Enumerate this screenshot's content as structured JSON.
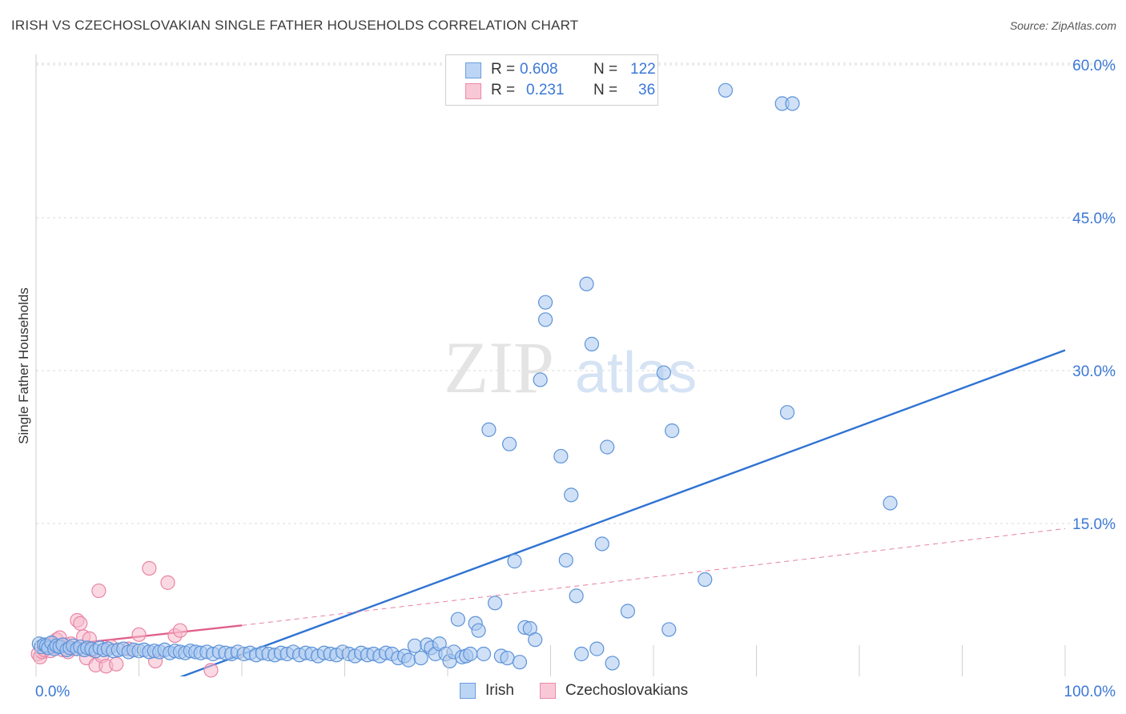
{
  "title": "IRISH VS CZECHOSLOVAKIAN SINGLE FATHER HOUSEHOLDS CORRELATION CHART",
  "source": "Source: ZipAtlas.com",
  "watermark": {
    "zip": "ZIP",
    "atlas": "atlas"
  },
  "legend": {
    "rows": [
      {
        "r_label": "R =",
        "r_value": "0.608",
        "n_label": "N =",
        "n_value": "122"
      },
      {
        "r_label": "R =",
        "r_value": "0.231",
        "n_label": "N =",
        "n_value": "36"
      }
    ]
  },
  "bottom_legend": [
    "Irish",
    "Czechoslovakians"
  ],
  "colors": {
    "irish_fill": "#a9c8f0",
    "irish_stroke": "#5d93d8",
    "irish_line": "#2f73d2",
    "czech_fill": "#f7b9cc",
    "czech_stroke": "#e985a6",
    "czech_line": "#e0608c",
    "tick_label": "#3b78d6",
    "grid": "#d9d9d9"
  },
  "chart_data": {
    "type": "scatter",
    "title": "IRISH VS CZECHOSLOVAKIAN SINGLE FATHER HOUSEHOLDS CORRELATION CHART",
    "ylabel": "Single Father Households",
    "xlabel": "",
    "xlim": [
      0,
      100
    ],
    "ylim": [
      0,
      62.5
    ],
    "x_tick_labels": [
      "0.0%",
      "100.0%"
    ],
    "y_ticks": [
      15,
      30,
      45,
      60
    ],
    "y_tick_labels": [
      "15.0%",
      "30.0%",
      "45.0%",
      "60.0%"
    ],
    "grid": "horizontal dashed",
    "legend_position": "top-center",
    "series": [
      {
        "name": "Irish",
        "R": 0.608,
        "N": 122,
        "trendline": {
          "x": [
            11.8,
            100
          ],
          "y": [
            -0.9,
            32.0
          ],
          "style": "solid"
        },
        "points": [
          [
            0.3,
            3.2
          ],
          [
            0.5,
            2.9
          ],
          [
            0.8,
            3.1
          ],
          [
            1.0,
            3.0
          ],
          [
            1.2,
            2.8
          ],
          [
            1.5,
            3.3
          ],
          [
            1.8,
            2.7
          ],
          [
            2.0,
            3.0
          ],
          [
            2.3,
            2.9
          ],
          [
            2.6,
            3.1
          ],
          [
            3.0,
            2.6
          ],
          [
            3.3,
            2.8
          ],
          [
            3.6,
            3.0
          ],
          [
            4.0,
            2.7
          ],
          [
            4.3,
            2.9
          ],
          [
            4.7,
            2.6
          ],
          [
            5.0,
            2.8
          ],
          [
            5.4,
            2.7
          ],
          [
            5.8,
            2.5
          ],
          [
            6.2,
            2.8
          ],
          [
            6.6,
            2.6
          ],
          [
            7.0,
            2.7
          ],
          [
            7.5,
            2.5
          ],
          [
            8.0,
            2.6
          ],
          [
            8.5,
            2.7
          ],
          [
            9.0,
            2.4
          ],
          [
            9.5,
            2.6
          ],
          [
            10.0,
            2.5
          ],
          [
            10.5,
            2.6
          ],
          [
            11.0,
            2.4
          ],
          [
            11.5,
            2.5
          ],
          [
            12.0,
            2.4
          ],
          [
            12.5,
            2.6
          ],
          [
            13.0,
            2.3
          ],
          [
            13.5,
            2.5
          ],
          [
            14.0,
            2.4
          ],
          [
            14.5,
            2.3
          ],
          [
            15.0,
            2.5
          ],
          [
            15.5,
            2.4
          ],
          [
            16.0,
            2.3
          ],
          [
            16.6,
            2.4
          ],
          [
            17.2,
            2.2
          ],
          [
            17.8,
            2.4
          ],
          [
            18.4,
            2.3
          ],
          [
            19.0,
            2.2
          ],
          [
            19.6,
            2.4
          ],
          [
            20.2,
            2.2
          ],
          [
            20.8,
            2.3
          ],
          [
            21.4,
            2.1
          ],
          [
            22.0,
            2.3
          ],
          [
            22.6,
            2.2
          ],
          [
            23.2,
            2.1
          ],
          [
            23.8,
            2.3
          ],
          [
            24.4,
            2.2
          ],
          [
            25.0,
            2.4
          ],
          [
            25.6,
            2.1
          ],
          [
            26.2,
            2.3
          ],
          [
            26.8,
            2.2
          ],
          [
            27.4,
            2.0
          ],
          [
            28.0,
            2.3
          ],
          [
            28.6,
            2.2
          ],
          [
            29.2,
            2.1
          ],
          [
            29.8,
            2.4
          ],
          [
            30.4,
            2.2
          ],
          [
            31.0,
            2.0
          ],
          [
            31.6,
            2.3
          ],
          [
            32.2,
            2.1
          ],
          [
            32.8,
            2.2
          ],
          [
            33.4,
            2.0
          ],
          [
            34.0,
            2.3
          ],
          [
            34.6,
            2.2
          ],
          [
            35.2,
            1.8
          ],
          [
            35.8,
            2.0
          ],
          [
            36.2,
            1.6
          ],
          [
            36.8,
            3.0
          ],
          [
            37.4,
            1.8
          ],
          [
            38.0,
            3.1
          ],
          [
            38.4,
            2.8
          ],
          [
            38.8,
            2.2
          ],
          [
            39.2,
            3.2
          ],
          [
            39.8,
            2.2
          ],
          [
            40.2,
            1.5
          ],
          [
            40.6,
            2.4
          ],
          [
            41.0,
            5.6
          ],
          [
            41.4,
            1.9
          ],
          [
            41.8,
            2.0
          ],
          [
            42.2,
            2.2
          ],
          [
            42.7,
            5.2
          ],
          [
            43.0,
            4.5
          ],
          [
            43.5,
            2.2
          ],
          [
            44.0,
            24.2
          ],
          [
            44.6,
            7.2
          ],
          [
            45.2,
            2.0
          ],
          [
            45.8,
            1.8
          ],
          [
            46.0,
            22.8
          ],
          [
            46.5,
            11.3
          ],
          [
            47.0,
            1.4
          ],
          [
            47.5,
            4.8
          ],
          [
            48.0,
            4.7
          ],
          [
            48.5,
            3.6
          ],
          [
            49.0,
            29.1
          ],
          [
            49.5,
            36.7
          ],
          [
            49.5,
            35.0
          ],
          [
            51.0,
            21.6
          ],
          [
            51.5,
            11.4
          ],
          [
            52.0,
            17.8
          ],
          [
            52.5,
            7.9
          ],
          [
            53.0,
            2.2
          ],
          [
            53.5,
            38.5
          ],
          [
            54.0,
            32.6
          ],
          [
            54.5,
            2.7
          ],
          [
            55.0,
            13.0
          ],
          [
            55.5,
            22.5
          ],
          [
            56.0,
            1.3
          ],
          [
            57.5,
            6.4
          ],
          [
            61.0,
            29.8
          ],
          [
            61.5,
            4.6
          ],
          [
            61.8,
            24.1
          ],
          [
            65.0,
            9.5
          ],
          [
            67.0,
            57.5
          ],
          [
            72.5,
            56.2
          ],
          [
            73.5,
            56.2
          ],
          [
            73.0,
            25.9
          ],
          [
            83.0,
            17.0
          ]
        ]
      },
      {
        "name": "Czechoslovakians",
        "R": 0.231,
        "N": 36,
        "trendline_solid": {
          "x": [
            0,
            20
          ],
          "y": [
            2.8,
            5.0
          ]
        },
        "trendline_dashed": {
          "x": [
            20,
            100
          ],
          "y": [
            5.0,
            14.5
          ]
        },
        "points": [
          [
            0.2,
            2.2
          ],
          [
            0.4,
            1.9
          ],
          [
            0.6,
            2.4
          ],
          [
            0.8,
            2.6
          ],
          [
            1.0,
            3.0
          ],
          [
            1.2,
            2.8
          ],
          [
            1.4,
            2.5
          ],
          [
            1.6,
            3.2
          ],
          [
            1.8,
            2.9
          ],
          [
            2.0,
            3.6
          ],
          [
            2.3,
            3.8
          ],
          [
            2.6,
            2.6
          ],
          [
            2.9,
            3.1
          ],
          [
            3.1,
            2.4
          ],
          [
            3.4,
            3.2
          ],
          [
            3.7,
            2.7
          ],
          [
            4.0,
            5.5
          ],
          [
            4.3,
            5.2
          ],
          [
            4.6,
            3.9
          ],
          [
            4.9,
            1.8
          ],
          [
            5.2,
            3.7
          ],
          [
            5.5,
            2.6
          ],
          [
            5.8,
            1.1
          ],
          [
            6.1,
            8.4
          ],
          [
            6.4,
            2.0
          ],
          [
            6.8,
            1.0
          ],
          [
            7.3,
            2.9
          ],
          [
            7.8,
            1.2
          ],
          [
            9.0,
            2.7
          ],
          [
            10.0,
            4.1
          ],
          [
            11.0,
            10.6
          ],
          [
            11.6,
            1.5
          ],
          [
            12.8,
            9.2
          ],
          [
            13.5,
            4.0
          ],
          [
            14.0,
            4.5
          ],
          [
            17.0,
            0.6
          ]
        ]
      }
    ]
  }
}
